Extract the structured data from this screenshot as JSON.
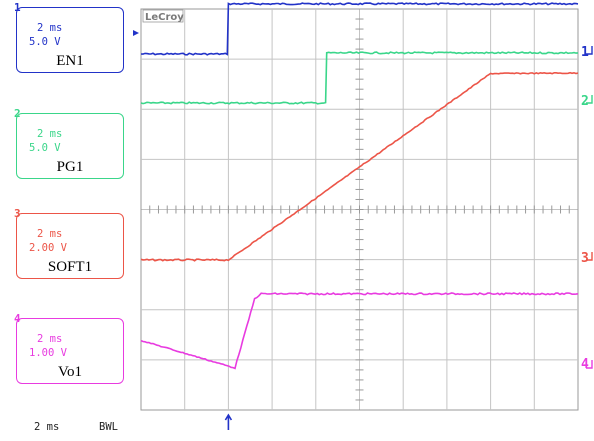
{
  "brand": "LeCroy",
  "status": {
    "timebase": "2 ms",
    "bwl": "BWL"
  },
  "colors": {
    "ch1": "#2233c8",
    "ch2": "#3ad68a",
    "ch3": "#ec5548",
    "ch4": "#e83be0",
    "grid": "#9a9a9a"
  },
  "channels": [
    {
      "number": "1",
      "timebase": "2 ms",
      "volts_div": "5.0 V",
      "name": "EN1"
    },
    {
      "number": "2",
      "timebase": "2 ms",
      "volts_div": "5.0 V",
      "name": "PG1"
    },
    {
      "number": "3",
      "timebase": "2 ms",
      "volts_div": "2.00 V",
      "name": "SOFT1"
    },
    {
      "number": "4",
      "timebase": "2 ms",
      "volts_div": "1.00 V",
      "name": "Vo1"
    }
  ],
  "chart_data": {
    "type": "line",
    "title": "",
    "xlabel": "",
    "ylabel": "",
    "x_unit": "ms",
    "xlim": [
      -4,
      16
    ],
    "divisions": {
      "x": 10,
      "y": 8
    },
    "series": [
      {
        "name": "EN1",
        "channel": "1",
        "volts_per_div": 5.0,
        "x": [
          -4,
          -0.05,
          0,
          16
        ],
        "y": [
          0,
          0,
          5.0,
          5.0
        ]
      },
      {
        "name": "PG1",
        "channel": "2",
        "volts_per_div": 5.0,
        "x": [
          -4,
          4.45,
          4.5,
          16
        ],
        "y": [
          0,
          0,
          5.0,
          5.0
        ]
      },
      {
        "name": "SOFT1",
        "channel": "3",
        "volts_per_div": 2.0,
        "x": [
          -4,
          0,
          4,
          8,
          12,
          16
        ],
        "y": [
          0,
          0,
          2.46,
          4.96,
          7.44,
          7.46
        ]
      },
      {
        "name": "Vo1",
        "channel": "4",
        "volts_per_div": 1.0,
        "x": [
          -4,
          0.3,
          1.2,
          1.5,
          16
        ],
        "y": [
          0.55,
          0.0,
          1.38,
          1.48,
          1.48
        ]
      }
    ]
  }
}
